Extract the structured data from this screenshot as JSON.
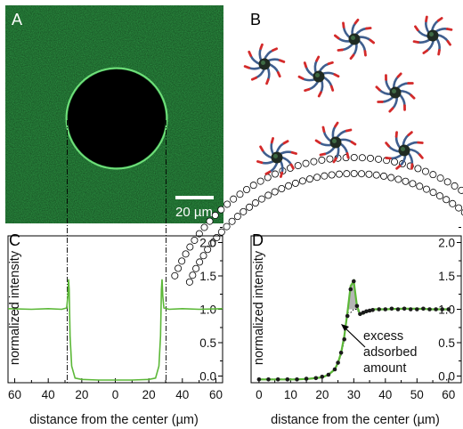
{
  "panel_labels": {
    "a": "A",
    "b": "B",
    "c": "C",
    "d": "D"
  },
  "scalebar": {
    "label": "20 µm"
  },
  "annotation": {
    "excess_line1": "excess",
    "excess_line2": "adsorbed",
    "excess_line3": "amount"
  },
  "colors": {
    "fluorescence_green": "#2e9a45",
    "profile_green": "#5cb838",
    "micelle_core": "#1f2a22",
    "micelle_arm_blue": "#3f5f8f",
    "micelle_arm_tip_red": "#d42a2a",
    "marker": "#1a1a1a"
  },
  "chart_data": [
    {
      "panel": "C",
      "type": "line",
      "xlabel": "distance from the center (µm)",
      "ylabel": "normalized intensity",
      "xticks": [
        "60",
        "40",
        "20",
        "0",
        "20",
        "40",
        "60"
      ],
      "yticks": [
        "0.0",
        "0.5",
        "1.0",
        "1.5",
        "2.0"
      ],
      "xlim": [
        -60,
        60
      ],
      "ylim": [
        -0.1,
        2.1
      ],
      "series": [
        {
          "x": [
            -64,
            -50,
            -40,
            -32,
            -29,
            -28.3,
            -27.9,
            -27.5,
            -27,
            -26,
            -24,
            -20,
            -10,
            0,
            10,
            20,
            24,
            26,
            27,
            27.5,
            27.9,
            28.3,
            29,
            32,
            40,
            50,
            64
          ],
          "y": [
            1.01,
            1.0,
            1.01,
            1.0,
            1.02,
            1.2,
            1.45,
            1.3,
            0.6,
            0.15,
            -0.03,
            -0.05,
            -0.06,
            -0.06,
            -0.06,
            -0.05,
            -0.03,
            0.15,
            0.6,
            1.3,
            1.45,
            1.2,
            1.02,
            1.0,
            1.01,
            1.0,
            1.01
          ]
        }
      ]
    },
    {
      "panel": "D",
      "type": "line",
      "xlabel": "distance from the center (µm)",
      "ylabel": "normalized intensity",
      "xticks": [
        "0",
        "10",
        "20",
        "30",
        "40",
        "50",
        "60"
      ],
      "yticks": [
        "0.0",
        "0.5",
        "1.0",
        "1.5",
        "2.0"
      ],
      "xlim": [
        0,
        60
      ],
      "ylim": [
        -0.1,
        2.1
      ],
      "series": [
        {
          "name": "",
          "x": [
            0,
            4,
            8,
            12,
            16,
            20,
            22,
            24,
            25,
            26,
            27,
            28,
            29,
            30,
            31,
            32,
            34,
            36,
            40,
            45,
            50,
            55,
            60
          ],
          "y": [
            -0.05,
            -0.05,
            -0.05,
            -0.05,
            -0.04,
            -0.02,
            0.02,
            0.1,
            0.2,
            0.35,
            0.6,
            0.95,
            1.35,
            1.42,
            1.05,
            0.92,
            0.96,
            1.0,
            1.0,
            1.01,
            1.01,
            1.0,
            1.0
          ]
        },
        {
          "x": [
            0,
            3,
            6,
            9,
            12,
            15,
            18,
            20,
            22,
            24,
            25,
            26,
            27,
            28,
            29,
            30,
            31,
            32,
            33,
            34,
            35,
            36,
            38,
            40,
            42,
            44,
            46,
            48,
            50,
            52,
            54,
            56,
            58,
            60
          ],
          "y": [
            -0.05,
            -0.05,
            -0.05,
            -0.05,
            -0.05,
            -0.04,
            -0.03,
            -0.01,
            0.02,
            0.1,
            0.2,
            0.35,
            0.55,
            0.9,
            1.3,
            1.42,
            1.05,
            0.93,
            0.95,
            0.97,
            0.98,
            0.99,
            1.0,
            1.0,
            1.01,
            1.0,
            1.01,
            1.0,
            1.0,
            1.01,
            1.0,
            1.0,
            1.0,
            1.0
          ]
        }
      ]
    }
  ]
}
